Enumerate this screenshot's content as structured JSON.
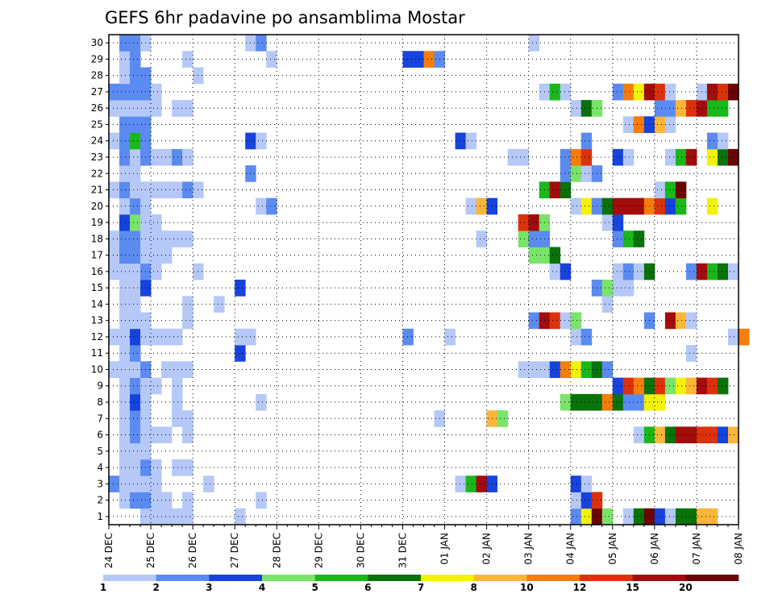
{
  "chart_data": {
    "type": "heatmap",
    "title": "GEFS 6hr padavine po ansamblima Mostar",
    "xlabel": "",
    "ylabel": "",
    "x_tick_labels": [
      "24 DEC",
      "25 DEC",
      "26 DEC",
      "27 DEC",
      "28 DEC",
      "29 DEC",
      "30 DEC",
      "31 DEC",
      "01 JAN",
      "02 JAN",
      "03 JAN",
      "04 JAN",
      "05 JAN",
      "06 JAN",
      "07 JAN",
      "08 JAN"
    ],
    "x_steps_per_day": 4,
    "x_step_hours": 6,
    "y_members": [
      1,
      2,
      3,
      4,
      5,
      6,
      7,
      8,
      9,
      10,
      11,
      12,
      13,
      14,
      15,
      16,
      17,
      18,
      19,
      20,
      21,
      22,
      23,
      24,
      25,
      26,
      27,
      28,
      29,
      30
    ],
    "grid": true,
    "legend": {
      "placement": "bottom",
      "labels": [
        "1",
        "2",
        "3",
        "4",
        "5",
        "6",
        "7",
        "8",
        "10",
        "12",
        "15",
        "20"
      ],
      "colors": [
        "#b5c8f7",
        "#5b8bf0",
        "#1743dd",
        "#7ae46a",
        "#1ab71a",
        "#0a720a",
        "#f2f20a",
        "#fbb63a",
        "#f77c0a",
        "#dc320c",
        "#a20c0c",
        "#6b0404"
      ]
    },
    "value_levels": [
      1.5,
      2.5,
      3.5,
      4.5,
      5.5,
      6.5,
      7.5,
      9,
      11,
      13.5,
      17.5,
      25
    ],
    "cells": [
      [
        1,
        3,
        [
          1,
          1,
          1,
          1
        ]
      ],
      [
        1,
        7,
        [
          1
        ]
      ],
      [
        1,
        12,
        [
          1
        ]
      ],
      [
        1,
        44,
        [
          2,
          7,
          12,
          4
        ]
      ],
      [
        1,
        49,
        [
          1,
          6,
          12,
          3,
          1
        ]
      ],
      [
        1,
        54,
        [
          6,
          6,
          8,
          8
        ]
      ],
      [
        2,
        1,
        [
          1
        ]
      ],
      [
        2,
        2,
        [
          2,
          2
        ]
      ],
      [
        2,
        4,
        [
          1,
          1
        ]
      ],
      [
        2,
        7,
        [
          1
        ]
      ],
      [
        2,
        14,
        [
          1
        ]
      ],
      [
        2,
        44,
        [
          1,
          3,
          10
        ]
      ],
      [
        3,
        0,
        [
          2
        ]
      ],
      [
        3,
        1,
        [
          1,
          1,
          1,
          1
        ]
      ],
      [
        3,
        9,
        [
          1
        ]
      ],
      [
        3,
        33,
        [
          1,
          5,
          11,
          3
        ]
      ],
      [
        3,
        44,
        [
          3,
          1
        ]
      ],
      [
        4,
        1,
        [
          1,
          1,
          2,
          1
        ]
      ],
      [
        4,
        6,
        [
          1,
          1
        ]
      ],
      [
        5,
        1,
        [
          1,
          1,
          1
        ]
      ],
      [
        6,
        1,
        [
          1,
          2,
          1,
          1,
          1
        ]
      ],
      [
        6,
        7,
        [
          1
        ]
      ],
      [
        6,
        50,
        [
          1,
          5,
          8,
          6,
          11,
          11,
          10,
          10,
          3,
          8
        ]
      ],
      [
        7,
        1,
        [
          1,
          2,
          1
        ]
      ],
      [
        7,
        6,
        [
          1,
          1
        ]
      ],
      [
        7,
        31,
        [
          1
        ]
      ],
      [
        7,
        36,
        [
          8,
          4
        ]
      ],
      [
        8,
        1,
        [
          1,
          3,
          1
        ]
      ],
      [
        8,
        6,
        [
          1
        ]
      ],
      [
        8,
        14,
        [
          1
        ]
      ],
      [
        8,
        43,
        [
          4,
          6,
          6,
          6,
          9,
          6,
          2,
          2,
          7,
          7
        ]
      ],
      [
        9,
        1,
        [
          1,
          2,
          1,
          1
        ]
      ],
      [
        9,
        6,
        [
          1
        ]
      ],
      [
        9,
        48,
        [
          3,
          10,
          9,
          6,
          10,
          4,
          7,
          8,
          11,
          10,
          6
        ]
      ],
      [
        10,
        0,
        [
          1,
          1,
          1,
          2
        ]
      ],
      [
        10,
        5,
        [
          1,
          1,
          1
        ]
      ],
      [
        10,
        39,
        [
          1,
          1,
          1,
          3,
          9,
          7,
          5,
          6,
          2
        ]
      ],
      [
        11,
        1,
        [
          1,
          2
        ]
      ],
      [
        11,
        12,
        [
          3
        ]
      ],
      [
        11,
        55,
        [
          1
        ]
      ],
      [
        12,
        0,
        [
          1,
          1,
          3,
          1,
          1,
          1,
          1
        ]
      ],
      [
        12,
        12,
        [
          1,
          1
        ]
      ],
      [
        12,
        28,
        [
          2
        ]
      ],
      [
        12,
        32,
        [
          1
        ]
      ],
      [
        12,
        44,
        [
          1,
          2
        ]
      ],
      [
        12,
        59,
        [
          1,
          9
        ]
      ],
      [
        13,
        1,
        [
          1,
          1,
          1
        ]
      ],
      [
        13,
        7,
        [
          1
        ]
      ],
      [
        13,
        40,
        [
          2,
          11,
          10,
          1,
          4
        ]
      ],
      [
        13,
        51,
        [
          2
        ]
      ],
      [
        13,
        53,
        [
          11,
          8,
          1
        ]
      ],
      [
        14,
        1,
        [
          1,
          1
        ]
      ],
      [
        14,
        7,
        [
          1
        ]
      ],
      [
        14,
        10,
        [
          1
        ]
      ],
      [
        14,
        47,
        [
          1
        ]
      ],
      [
        15,
        1,
        [
          1,
          1,
          3
        ]
      ],
      [
        15,
        12,
        [
          3
        ]
      ],
      [
        15,
        46,
        [
          2,
          4,
          1,
          1
        ]
      ],
      [
        16,
        0,
        [
          1,
          1,
          1,
          2
        ]
      ],
      [
        16,
        4,
        [
          1
        ]
      ],
      [
        16,
        8,
        [
          1
        ]
      ],
      [
        16,
        42,
        [
          1,
          3
        ]
      ],
      [
        16,
        48,
        [
          1,
          2,
          1,
          6
        ]
      ],
      [
        16,
        55,
        [
          2,
          11,
          5,
          6,
          1
        ]
      ],
      [
        17,
        0,
        [
          1,
          2,
          2,
          1,
          1,
          1
        ]
      ],
      [
        17,
        40,
        [
          4,
          4,
          6
        ]
      ],
      [
        18,
        0,
        [
          1,
          2,
          2,
          1,
          1,
          1,
          1,
          1
        ]
      ],
      [
        18,
        35,
        [
          1
        ]
      ],
      [
        18,
        39,
        [
          4,
          2,
          2
        ]
      ],
      [
        18,
        48,
        [
          2,
          5,
          6
        ]
      ],
      [
        19,
        1,
        [
          3,
          4,
          1,
          1
        ]
      ],
      [
        19,
        39,
        [
          10,
          11,
          4
        ]
      ],
      [
        19,
        47,
        [
          1,
          3
        ]
      ],
      [
        20,
        1,
        [
          1,
          2,
          1
        ]
      ],
      [
        20,
        14,
        [
          1,
          2
        ]
      ],
      [
        20,
        34,
        [
          1,
          8,
          3
        ]
      ],
      [
        20,
        44,
        [
          1,
          7,
          2,
          6,
          11,
          11,
          11,
          9,
          10,
          3,
          5
        ]
      ],
      [
        20,
        57,
        [
          7
        ]
      ],
      [
        21,
        0,
        [
          1,
          2,
          1,
          1,
          1,
          1,
          1,
          2,
          1
        ]
      ],
      [
        21,
        41,
        [
          5,
          11,
          6
        ]
      ],
      [
        21,
        52,
        [
          1,
          5,
          12
        ]
      ],
      [
        22,
        1,
        [
          1,
          1
        ]
      ],
      [
        22,
        13,
        [
          2
        ]
      ],
      [
        22,
        43,
        [
          2,
          4,
          1,
          2
        ]
      ],
      [
        23,
        1,
        [
          2,
          1,
          2,
          1,
          1,
          2,
          1
        ]
      ],
      [
        23,
        38,
        [
          1,
          1
        ]
      ],
      [
        23,
        43,
        [
          2,
          9,
          10
        ]
      ],
      [
        23,
        48,
        [
          3,
          1
        ]
      ],
      [
        23,
        53,
        [
          1,
          5,
          11
        ]
      ],
      [
        23,
        57,
        [
          7,
          6,
          12
        ]
      ],
      [
        24,
        0,
        [
          1,
          2,
          5,
          2
        ]
      ],
      [
        24,
        13,
        [
          3,
          1
        ]
      ],
      [
        24,
        33,
        [
          3,
          1
        ]
      ],
      [
        24,
        45,
        [
          2
        ]
      ],
      [
        24,
        57,
        [
          2,
          1
        ]
      ],
      [
        25,
        1,
        [
          2,
          2,
          2
        ]
      ],
      [
        25,
        49,
        [
          1,
          9,
          3,
          8,
          1
        ]
      ],
      [
        26,
        0,
        [
          1,
          1,
          1,
          1,
          1
        ]
      ],
      [
        26,
        6,
        [
          1,
          1
        ]
      ],
      [
        26,
        44,
        [
          1,
          6,
          4
        ]
      ],
      [
        26,
        52,
        [
          2,
          2,
          8,
          10,
          11,
          5,
          5
        ]
      ],
      [
        27,
        0,
        [
          2,
          2,
          2,
          2,
          1
        ]
      ],
      [
        27,
        41,
        [
          1,
          5,
          1
        ]
      ],
      [
        27,
        48,
        [
          2,
          9,
          7,
          11,
          10,
          1
        ]
      ],
      [
        27,
        56,
        [
          1,
          11,
          10,
          12
        ]
      ],
      [
        28,
        1,
        [
          1,
          2,
          2
        ]
      ],
      [
        28,
        8,
        [
          1
        ]
      ],
      [
        29,
        1,
        [
          1,
          2
        ]
      ],
      [
        29,
        7,
        [
          1
        ]
      ],
      [
        29,
        15,
        [
          1
        ]
      ],
      [
        29,
        28,
        [
          3,
          3,
          9,
          2
        ]
      ],
      [
        30,
        1,
        [
          2,
          2,
          1
        ]
      ],
      [
        30,
        13,
        [
          1,
          2
        ]
      ],
      [
        30,
        40,
        [
          1
        ]
      ]
    ]
  }
}
